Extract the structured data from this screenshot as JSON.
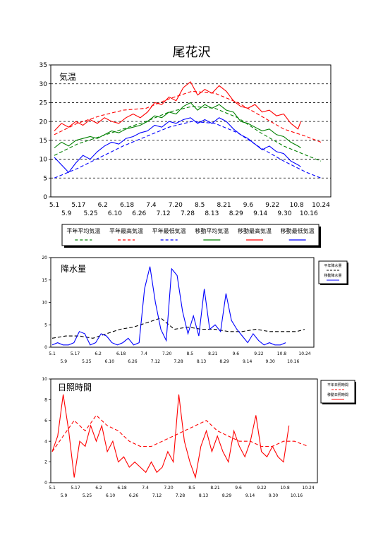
{
  "page": {
    "title": "尾花沢"
  },
  "chart_data": [
    {
      "type": "line",
      "panel_label": "気温",
      "ylim": [
        0,
        35
      ],
      "yticks": [
        "0",
        "5",
        "10",
        "15",
        "20",
        "25",
        "30",
        "35"
      ],
      "x_ticks_row1": [
        "5.1",
        "5.17",
        "6.2",
        "6.18",
        "7.4",
        "7.20",
        "8.5",
        "8.21",
        "9.6",
        "9.22",
        "10.8",
        "10.24"
      ],
      "x_ticks_row2": [
        "5.9",
        "5.25",
        "6.10",
        "6.26",
        "7.12",
        "7.28",
        "8.13",
        "8.29",
        "9.14",
        "9.30",
        "10.16"
      ],
      "x_day_range": [
        0,
        186
      ],
      "grid": "horizontal dashed",
      "legend": "bottom",
      "legend_items": [
        {
          "name": "平年平均気温",
          "style": "dashed",
          "color": "#008000"
        },
        {
          "name": "平年最高気温",
          "style": "dashed",
          "color": "#ff0000"
        },
        {
          "name": "平年最低気温",
          "style": "dashed",
          "color": "#0000ff"
        },
        {
          "name": "移動平均気温",
          "style": "solid",
          "color": "#008000"
        },
        {
          "name": "移動最高気温",
          "style": "solid",
          "color": "#ff0000"
        },
        {
          "name": "移動最低気温",
          "style": "solid",
          "color": "#0000ff"
        }
      ],
      "series": [
        {
          "key": "normal_max",
          "color": "#ff0000",
          "style": "dashed",
          "x": [
            0,
            16,
            32,
            48,
            64,
            80,
            96,
            112,
            128,
            144,
            160,
            176,
            186
          ],
          "y": [
            16.5,
            19.5,
            21.5,
            23.0,
            23.5,
            26.0,
            28.0,
            27.5,
            25.0,
            21.5,
            18.0,
            16.0,
            14.5
          ]
        },
        {
          "key": "normal_mean",
          "color": "#008000",
          "style": "dashed",
          "x": [
            0,
            16,
            32,
            48,
            64,
            80,
            96,
            112,
            128,
            144,
            160,
            176,
            186
          ],
          "y": [
            11.0,
            14.0,
            16.0,
            18.0,
            20.0,
            22.5,
            24.0,
            23.5,
            21.0,
            17.0,
            13.5,
            11.0,
            9.5
          ]
        },
        {
          "key": "normal_min",
          "color": "#0000ff",
          "style": "dashed",
          "x": [
            0,
            16,
            32,
            48,
            64,
            80,
            96,
            112,
            128,
            144,
            160,
            176,
            186
          ],
          "y": [
            5.0,
            7.5,
            10.5,
            13.5,
            16.0,
            18.5,
            20.0,
            19.5,
            17.0,
            13.0,
            9.5,
            6.5,
            5.0
          ]
        },
        {
          "key": "moving_max",
          "color": "#ff0000",
          "style": "solid",
          "x": [
            0,
            5,
            10,
            15,
            20,
            25,
            30,
            35,
            40,
            45,
            50,
            55,
            60,
            65,
            70,
            75,
            80,
            85,
            90,
            95,
            100,
            105,
            110,
            115,
            120,
            125,
            130,
            135,
            140,
            145,
            150,
            155,
            160,
            165,
            170,
            172
          ],
          "y": [
            17.5,
            19.5,
            18.5,
            20.0,
            19.0,
            20.5,
            19.5,
            21.0,
            20.0,
            19.5,
            21.0,
            22.0,
            21.0,
            22.5,
            25.0,
            24.5,
            26.5,
            25.5,
            29.0,
            30.5,
            27.0,
            28.5,
            27.5,
            29.5,
            28.0,
            25.5,
            24.0,
            23.5,
            24.5,
            22.5,
            23.0,
            21.5,
            22.0,
            19.5,
            18.0,
            20.0
          ]
        },
        {
          "key": "moving_mean",
          "color": "#008000",
          "style": "solid",
          "x": [
            0,
            5,
            10,
            15,
            20,
            25,
            30,
            35,
            40,
            45,
            50,
            55,
            60,
            65,
            70,
            75,
            80,
            85,
            90,
            95,
            100,
            105,
            110,
            115,
            120,
            125,
            130,
            135,
            140,
            145,
            150,
            155,
            160,
            165,
            170,
            172
          ],
          "y": [
            13.0,
            14.5,
            13.5,
            15.0,
            15.5,
            16.0,
            15.5,
            16.5,
            17.5,
            17.0,
            18.0,
            18.5,
            19.0,
            20.0,
            21.5,
            21.0,
            22.5,
            22.0,
            24.0,
            25.0,
            23.0,
            24.5,
            23.5,
            24.5,
            23.0,
            22.5,
            20.0,
            19.5,
            18.5,
            17.5,
            18.0,
            16.5,
            16.0,
            14.5,
            13.5,
            13.0
          ]
        },
        {
          "key": "moving_min",
          "color": "#0000ff",
          "style": "solid",
          "x": [
            0,
            5,
            10,
            15,
            20,
            25,
            30,
            35,
            40,
            45,
            50,
            55,
            60,
            65,
            70,
            75,
            80,
            85,
            90,
            95,
            100,
            105,
            110,
            115,
            120,
            125,
            130,
            135,
            140,
            145,
            150,
            155,
            160,
            165,
            170,
            172
          ],
          "y": [
            10.5,
            8.5,
            6.5,
            9.0,
            11.0,
            10.0,
            12.0,
            13.5,
            14.5,
            14.0,
            15.5,
            16.0,
            17.0,
            17.5,
            19.0,
            18.5,
            20.0,
            19.5,
            20.5,
            21.0,
            19.5,
            20.5,
            19.5,
            21.0,
            20.0,
            18.0,
            16.5,
            15.5,
            14.0,
            12.5,
            13.5,
            12.0,
            11.5,
            9.5,
            8.5,
            8.0
          ]
        }
      ]
    },
    {
      "type": "line",
      "panel_label": "降水量",
      "ylim": [
        0,
        20
      ],
      "yticks": [
        "0",
        "5",
        "10",
        "15",
        "20"
      ],
      "x_ticks_row1": [
        "5.1",
        "5.17",
        "6.2",
        "6.18",
        "7.4",
        "7.20",
        "8.5",
        "8.21",
        "9.6",
        "9.22",
        "10.8",
        "10.24"
      ],
      "x_ticks_row2": [
        "5.9",
        "5.25",
        "6.10",
        "6.26",
        "7.12",
        "7.28",
        "8.13",
        "8.29",
        "9.14",
        "9.30",
        "10.16"
      ],
      "x_day_range": [
        0,
        186
      ],
      "legend": "right",
      "legend_items": [
        {
          "name": "平年降水量",
          "style": "dashed",
          "color": "#000000"
        },
        {
          "name": "移動降水量",
          "style": "solid",
          "color": "#0000ff"
        }
      ],
      "series": [
        {
          "key": "normal_precip",
          "color": "#000000",
          "style": "dashed",
          "x": [
            0,
            10,
            20,
            30,
            40,
            50,
            60,
            70,
            80,
            90,
            100,
            110,
            120,
            130,
            140,
            150,
            160,
            170,
            180,
            186
          ],
          "y": [
            2.0,
            2.5,
            2.5,
            2.0,
            3.0,
            4.0,
            4.5,
            5.5,
            6.5,
            4.0,
            4.5,
            4.0,
            4.0,
            3.5,
            3.5,
            4.0,
            3.5,
            3.5,
            3.5,
            4.0
          ]
        },
        {
          "key": "moving_precip",
          "color": "#0000ff",
          "style": "solid",
          "x": [
            0,
            4,
            8,
            12,
            16,
            20,
            24,
            28,
            32,
            36,
            40,
            44,
            48,
            52,
            56,
            60,
            64,
            68,
            72,
            76,
            80,
            84,
            88,
            92,
            96,
            100,
            104,
            108,
            112,
            116,
            120,
            124,
            128,
            132,
            136,
            140,
            144,
            148,
            152,
            156,
            160,
            164,
            168,
            172
          ],
          "y": [
            0.5,
            1.0,
            0.5,
            0.5,
            1.0,
            3.5,
            3.0,
            0.5,
            1.0,
            3.0,
            2.5,
            1.0,
            0.5,
            1.0,
            2.0,
            0.5,
            1.0,
            13.0,
            18.0,
            10.0,
            4.0,
            1.5,
            17.5,
            16.0,
            8.0,
            3.0,
            7.0,
            2.5,
            13.0,
            4.0,
            5.0,
            3.5,
            12.0,
            6.0,
            4.0,
            2.5,
            1.0,
            3.0,
            1.5,
            0.5,
            1.0,
            0.5,
            0.5,
            1.0
          ]
        }
      ]
    },
    {
      "type": "line",
      "panel_label": "日照時間",
      "ylim": [
        0,
        10
      ],
      "yticks": [
        "0",
        "2",
        "4",
        "6",
        "8",
        "10"
      ],
      "x_ticks_row1": [
        "5.1",
        "5.17",
        "6.2",
        "6.18",
        "7.4",
        "7.20",
        "8.5",
        "8.21",
        "9.6",
        "9.22",
        "10.8",
        "10.24"
      ],
      "x_ticks_row2": [
        "5.9",
        "5.25",
        "6.10",
        "6.26",
        "7.12",
        "7.28",
        "8.13",
        "8.29",
        "9.14",
        "9.30",
        "10.16"
      ],
      "x_day_range": [
        0,
        186
      ],
      "legend": "right",
      "legend_items": [
        {
          "name": "平年日照時間",
          "style": "dashed",
          "color": "#ff0000"
        },
        {
          "name": "移動日照時間",
          "style": "solid",
          "color": "#ff0000"
        }
      ],
      "series": [
        {
          "key": "normal_sun",
          "color": "#ff0000",
          "style": "dashed",
          "x": [
            0,
            8,
            16,
            24,
            32,
            40,
            48,
            56,
            64,
            72,
            80,
            88,
            96,
            104,
            112,
            120,
            128,
            136,
            144,
            152,
            160,
            168,
            176,
            186
          ],
          "y": [
            3.0,
            4.5,
            6.0,
            5.0,
            6.5,
            5.5,
            5.0,
            4.0,
            3.5,
            3.5,
            4.0,
            4.5,
            5.0,
            5.5,
            6.0,
            5.0,
            4.5,
            4.0,
            4.0,
            3.5,
            3.5,
            4.0,
            4.0,
            3.5
          ]
        },
        {
          "key": "moving_sun",
          "color": "#ff0000",
          "style": "solid",
          "x": [
            0,
            4,
            8,
            12,
            16,
            20,
            24,
            28,
            32,
            36,
            40,
            44,
            48,
            52,
            56,
            60,
            64,
            68,
            72,
            76,
            80,
            84,
            88,
            92,
            96,
            100,
            104,
            108,
            112,
            116,
            120,
            124,
            128,
            132,
            136,
            140,
            144,
            148,
            152,
            156,
            160,
            164,
            168,
            172
          ],
          "y": [
            3.0,
            4.5,
            8.5,
            5.0,
            0.5,
            4.0,
            3.5,
            5.5,
            4.0,
            5.5,
            3.0,
            4.0,
            2.0,
            2.5,
            1.5,
            2.0,
            1.5,
            1.0,
            2.0,
            1.0,
            1.5,
            3.0,
            2.0,
            8.5,
            4.0,
            2.0,
            0.5,
            3.5,
            5.0,
            3.0,
            4.5,
            3.0,
            2.0,
            5.0,
            3.5,
            2.5,
            4.0,
            6.5,
            3.0,
            2.5,
            3.5,
            2.5,
            2.0,
            5.5
          ]
        }
      ]
    }
  ]
}
